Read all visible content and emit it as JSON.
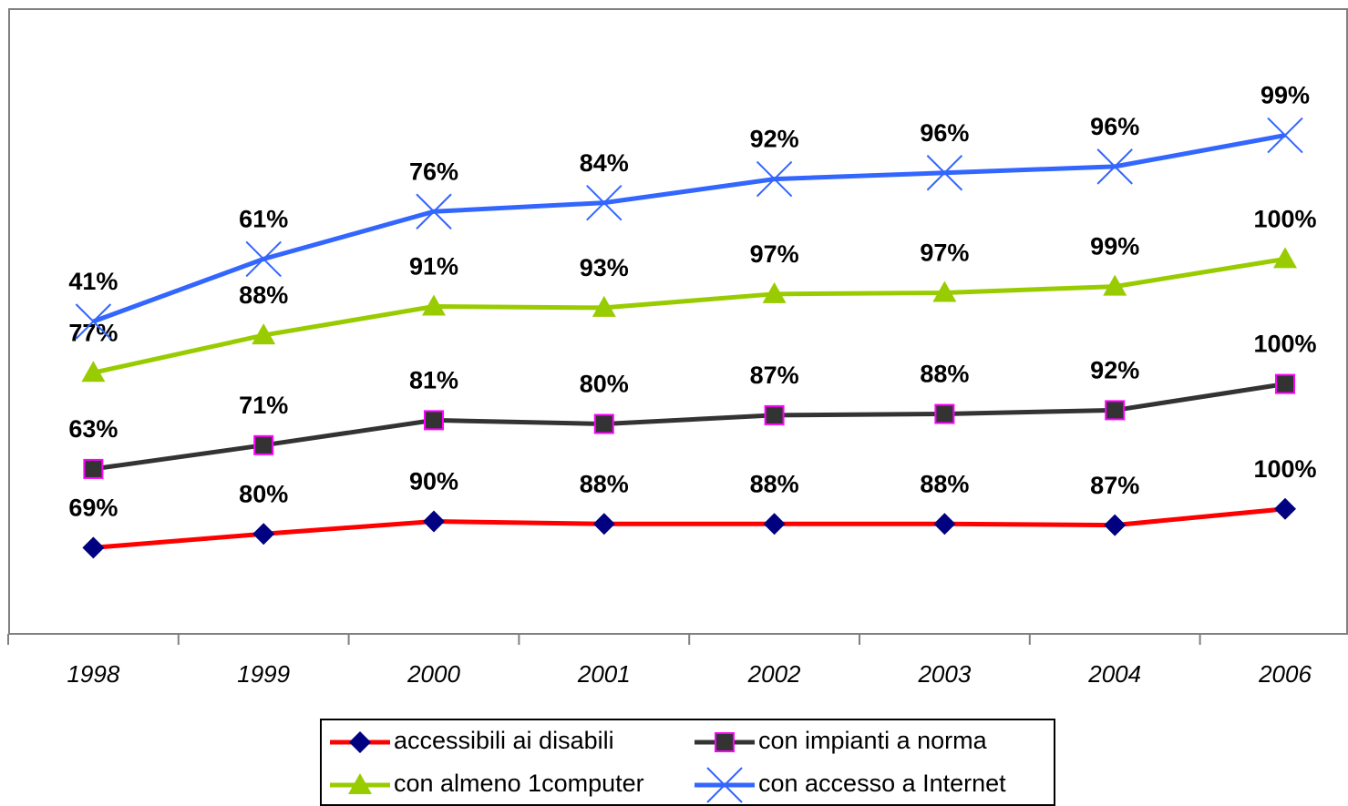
{
  "chart_data": {
    "type": "line",
    "stacked": true,
    "categories": [
      "1998",
      "1999",
      "2000",
      "2001",
      "2002",
      "2003",
      "2004",
      "2006"
    ],
    "ylim": [
      0,
      500
    ],
    "series": [
      {
        "name": "accessibili ai disabili",
        "color": "#ff0000",
        "marker": "diamond",
        "marker_color": "#000080",
        "values": [
          69,
          80,
          90,
          88,
          88,
          88,
          87,
          100
        ],
        "value_labels": [
          "69%",
          "80%",
          "90%",
          "88%",
          "88%",
          "88%",
          "87%",
          "100%"
        ]
      },
      {
        "name": "con impianti a norma",
        "color": "#333333",
        "marker": "square",
        "marker_color": "#333333",
        "values": [
          63,
          71,
          81,
          80,
          87,
          88,
          92,
          100
        ],
        "value_labels": [
          "63%",
          "71%",
          "81%",
          "80%",
          "87%",
          "88%",
          "92%",
          "100%"
        ]
      },
      {
        "name": "con almeno 1computer",
        "color": "#99cc00",
        "marker": "triangle",
        "marker_color": "#99cc00",
        "values": [
          77,
          88,
          91,
          93,
          97,
          97,
          99,
          100
        ],
        "value_labels": [
          "77%",
          "88%",
          "91%",
          "93%",
          "97%",
          "97%",
          "99%",
          "100%"
        ]
      },
      {
        "name": "con accesso a Internet",
        "color": "#3366ff",
        "marker": "x",
        "marker_color": "#3366ff",
        "values": [
          41,
          61,
          76,
          84,
          92,
          96,
          96,
          99
        ],
        "value_labels": [
          "41%",
          "61%",
          "76%",
          "84%",
          "92%",
          "96%",
          "96%",
          "99%"
        ]
      }
    ]
  }
}
